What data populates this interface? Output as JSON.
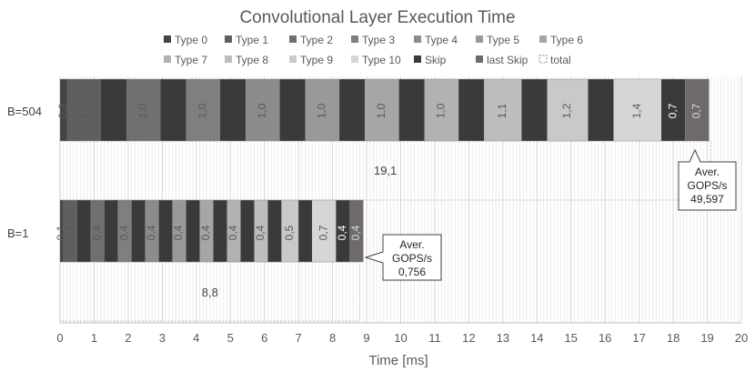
{
  "chart_data": {
    "type": "bar",
    "orientation": "horizontal",
    "stacked": true,
    "title": "Convolutional Layer Execution Time",
    "xlabel": "Time [ms]",
    "ylabel": "",
    "xlim": [
      0,
      20
    ],
    "xticks": [
      0,
      1,
      2,
      3,
      4,
      5,
      6,
      7,
      8,
      9,
      10,
      11,
      12,
      13,
      14,
      15,
      16,
      17,
      18,
      19,
      20
    ],
    "grid": true,
    "legend_position": "top",
    "legend": [
      {
        "name": "Type 0",
        "color": "#444444"
      },
      {
        "name": "Type 1",
        "color": "#5f5f5f"
      },
      {
        "name": "Type 2",
        "color": "#707070"
      },
      {
        "name": "Type 3",
        "color": "#7f7f7f"
      },
      {
        "name": "Type 4",
        "color": "#8c8c8c"
      },
      {
        "name": "Type 5",
        "color": "#999999"
      },
      {
        "name": "Type 6",
        "color": "#a6a6a6"
      },
      {
        "name": "Type 7",
        "color": "#b2b2b2"
      },
      {
        "name": "Type 8",
        "color": "#bdbdbd"
      },
      {
        "name": "Type 9",
        "color": "#c9c9c9"
      },
      {
        "name": "Type 10",
        "color": "#d6d6d6"
      },
      {
        "name": "Skip",
        "color": "#3a3a3a"
      },
      {
        "name": "last Skip",
        "color": "#6f6a6a"
      },
      {
        "name": "total",
        "color": "#ffffff"
      }
    ],
    "rows": [
      {
        "label": "B=504",
        "segments": [
          {
            "series": "Type 0",
            "value": 0.2,
            "label": "0,2"
          },
          {
            "series": "Type 1",
            "value": 1.0,
            "label": "1,0"
          },
          {
            "series": "Skip",
            "value": 0.75,
            "label": ""
          },
          {
            "series": "Type 2",
            "value": 1.0,
            "label": "1,0"
          },
          {
            "series": "Skip",
            "value": 0.75,
            "label": ""
          },
          {
            "series": "Type 3",
            "value": 1.0,
            "label": "1,0"
          },
          {
            "series": "Skip",
            "value": 0.75,
            "label": ""
          },
          {
            "series": "Type 4",
            "value": 1.0,
            "label": "1,0"
          },
          {
            "series": "Skip",
            "value": 0.75,
            "label": ""
          },
          {
            "series": "Type 5",
            "value": 1.0,
            "label": "1,0"
          },
          {
            "series": "Skip",
            "value": 0.75,
            "label": ""
          },
          {
            "series": "Type 6",
            "value": 1.0,
            "label": "1,0"
          },
          {
            "series": "Skip",
            "value": 0.75,
            "label": ""
          },
          {
            "series": "Type 7",
            "value": 1.0,
            "label": "1,0"
          },
          {
            "series": "Skip",
            "value": 0.75,
            "label": ""
          },
          {
            "series": "Type 8",
            "value": 1.1,
            "label": "1,1"
          },
          {
            "series": "Skip",
            "value": 0.75,
            "label": ""
          },
          {
            "series": "Type 9",
            "value": 1.2,
            "label": "1,2"
          },
          {
            "series": "Skip",
            "value": 0.75,
            "label": ""
          },
          {
            "series": "Type 10",
            "value": 1.4,
            "label": "1,4"
          },
          {
            "series": "Skip",
            "value": 0.7,
            "label": "0,7"
          },
          {
            "series": "last Skip",
            "value": 0.7,
            "label": "0,7"
          }
        ],
        "total": 19.1,
        "total_label": "19,1",
        "callout": {
          "title": "Aver. GOPS/s",
          "value": "49,597"
        }
      },
      {
        "label": "B=1",
        "segments": [
          {
            "series": "Type 0",
            "value": 0.1,
            "label": "0,1"
          },
          {
            "series": "Type 1",
            "value": 0.4,
            "label": "0,4"
          },
          {
            "series": "Skip",
            "value": 0.4,
            "label": ""
          },
          {
            "series": "Type 2",
            "value": 0.4,
            "label": "0,4"
          },
          {
            "series": "Skip",
            "value": 0.4,
            "label": ""
          },
          {
            "series": "Type 3",
            "value": 0.4,
            "label": "0,4"
          },
          {
            "series": "Skip",
            "value": 0.4,
            "label": ""
          },
          {
            "series": "Type 4",
            "value": 0.4,
            "label": "0,4"
          },
          {
            "series": "Skip",
            "value": 0.4,
            "label": ""
          },
          {
            "series": "Type 5",
            "value": 0.4,
            "label": "0,4"
          },
          {
            "series": "Skip",
            "value": 0.4,
            "label": ""
          },
          {
            "series": "Type 6",
            "value": 0.4,
            "label": "0,4"
          },
          {
            "series": "Skip",
            "value": 0.4,
            "label": ""
          },
          {
            "series": "Type 7",
            "value": 0.4,
            "label": "0,4"
          },
          {
            "series": "Skip",
            "value": 0.4,
            "label": ""
          },
          {
            "series": "Type 8",
            "value": 0.4,
            "label": "0,4"
          },
          {
            "series": "Skip",
            "value": 0.4,
            "label": ""
          },
          {
            "series": "Type 9",
            "value": 0.5,
            "label": "0,5"
          },
          {
            "series": "Skip",
            "value": 0.4,
            "label": ""
          },
          {
            "series": "Type 10",
            "value": 0.7,
            "label": "0,7"
          },
          {
            "series": "Skip",
            "value": 0.4,
            "label": "0,4"
          },
          {
            "series": "last Skip",
            "value": 0.4,
            "label": "0,4"
          }
        ],
        "total": 8.8,
        "total_label": "8,8",
        "callout": {
          "title": "Aver. GOPS/s",
          "value": "0,756"
        }
      }
    ]
  }
}
